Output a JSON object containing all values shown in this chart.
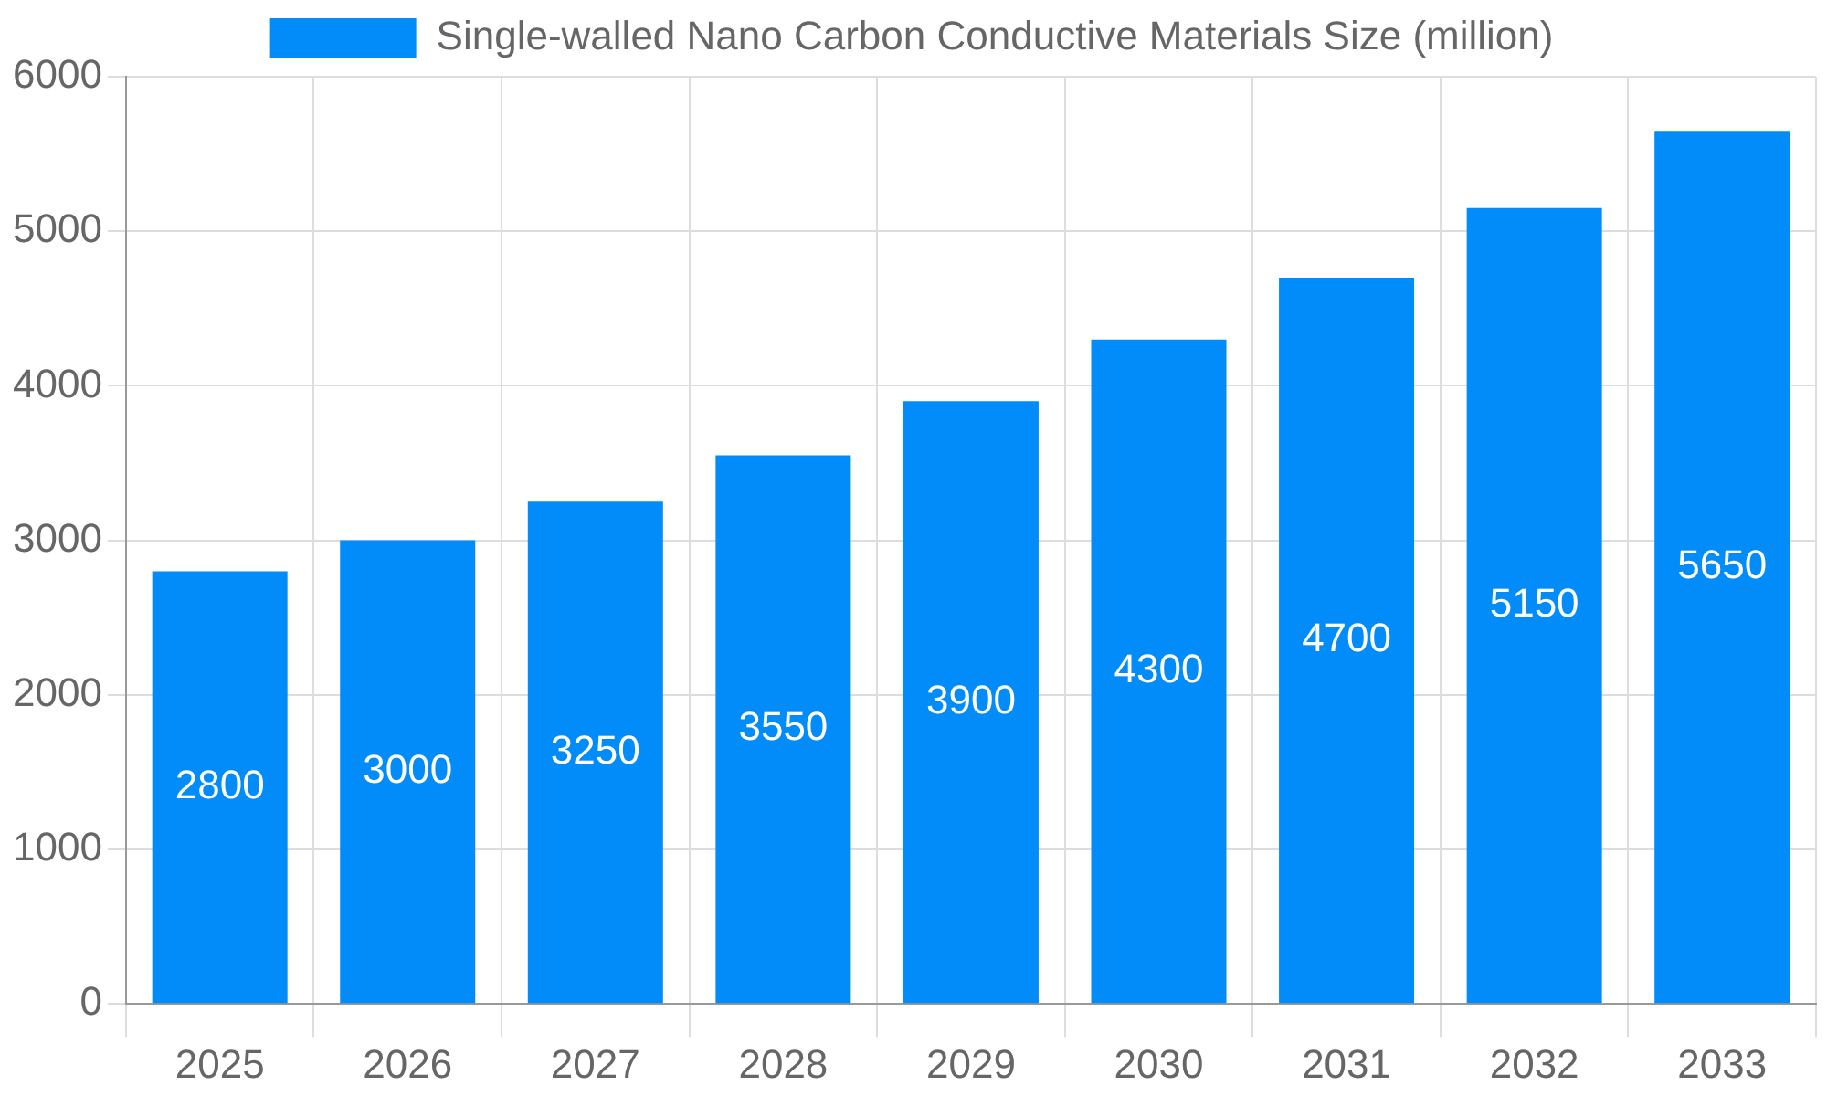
{
  "chart_data": {
    "type": "bar",
    "categories": [
      "2025",
      "2026",
      "2027",
      "2028",
      "2029",
      "2030",
      "2031",
      "2032",
      "2033"
    ],
    "series": [
      {
        "name": "Single-walled Nano Carbon Conductive Materials Size (million)",
        "color": "#028cf9",
        "values": [
          2800,
          3000,
          3250,
          3550,
          3900,
          4300,
          4700,
          5150,
          5650
        ]
      }
    ],
    "ylim": [
      0,
      6000
    ],
    "yticks": [
      0,
      1000,
      2000,
      3000,
      4000,
      5000,
      6000
    ],
    "grid": true,
    "legend": "top",
    "data_labels": true
  }
}
